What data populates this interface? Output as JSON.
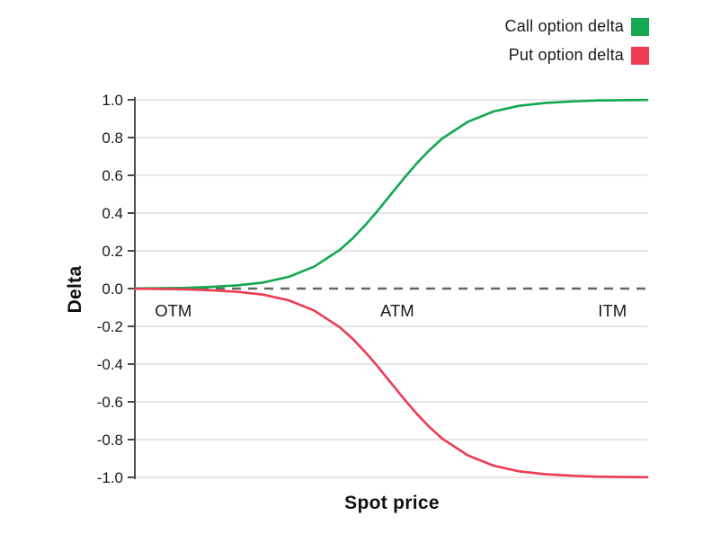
{
  "legend": {
    "position": "top-right",
    "items": [
      {
        "label": "Call option delta",
        "color": "#11a850"
      },
      {
        "label": "Put option delta",
        "color": "#ed3b52"
      }
    ]
  },
  "chart_data": {
    "type": "line",
    "title": "",
    "xlabel": "Spot price",
    "ylabel": "Delta",
    "ylim": [
      -1.0,
      1.0
    ],
    "grid": true,
    "zero_line_style": "dashed",
    "y_ticks": [
      {
        "label": "1.0",
        "value": 1.0
      },
      {
        "label": "0.8",
        "value": 0.8
      },
      {
        "label": "0.6",
        "value": 0.6
      },
      {
        "label": "0.4",
        "value": 0.4
      },
      {
        "label": "0.2",
        "value": 0.2
      },
      {
        "label": "0.0",
        "value": 0.0
      },
      {
        "label": "-0.2",
        "value": -0.2
      },
      {
        "label": "-0.4",
        "value": -0.4
      },
      {
        "label": "-0.6",
        "value": -0.6
      },
      {
        "label": "-0.8",
        "value": -0.8
      },
      {
        "label": "-1.0",
        "value": -1.0
      }
    ],
    "x_zone_labels": [
      {
        "label": "OTM",
        "u": 0.075
      },
      {
        "label": "ATM",
        "u": 0.512
      },
      {
        "label": "ITM",
        "u": 0.932
      }
    ],
    "x": [
      0,
      0.05,
      0.1,
      0.15,
      0.2,
      0.25,
      0.3,
      0.35,
      0.4,
      0.425,
      0.45,
      0.475,
      0.5,
      0.525,
      0.55,
      0.575,
      0.6,
      0.65,
      0.7,
      0.75,
      0.8,
      0.85,
      0.9,
      0.95,
      1.0
    ],
    "series": [
      {
        "name": "Call option delta",
        "color": "#11a850",
        "values": [
          0.001,
          0.002,
          0.004,
          0.009,
          0.017,
          0.032,
          0.062,
          0.116,
          0.205,
          0.266,
          0.337,
          0.416,
          0.5,
          0.584,
          0.663,
          0.734,
          0.795,
          0.884,
          0.938,
          0.968,
          0.983,
          0.991,
          0.996,
          0.998,
          0.999
        ]
      },
      {
        "name": "Put option delta",
        "color": "#ed3b52",
        "values": [
          -0.001,
          -0.002,
          -0.004,
          -0.009,
          -0.017,
          -0.032,
          -0.062,
          -0.116,
          -0.205,
          -0.266,
          -0.337,
          -0.416,
          -0.5,
          -0.584,
          -0.663,
          -0.734,
          -0.795,
          -0.884,
          -0.938,
          -0.968,
          -0.983,
          -0.991,
          -0.996,
          -0.998,
          -0.999
        ]
      }
    ],
    "colors": {
      "grid": "#dedede",
      "axis": "#4a4a4a",
      "zero_dash": "#666666",
      "text": "#1a1a1a"
    }
  }
}
